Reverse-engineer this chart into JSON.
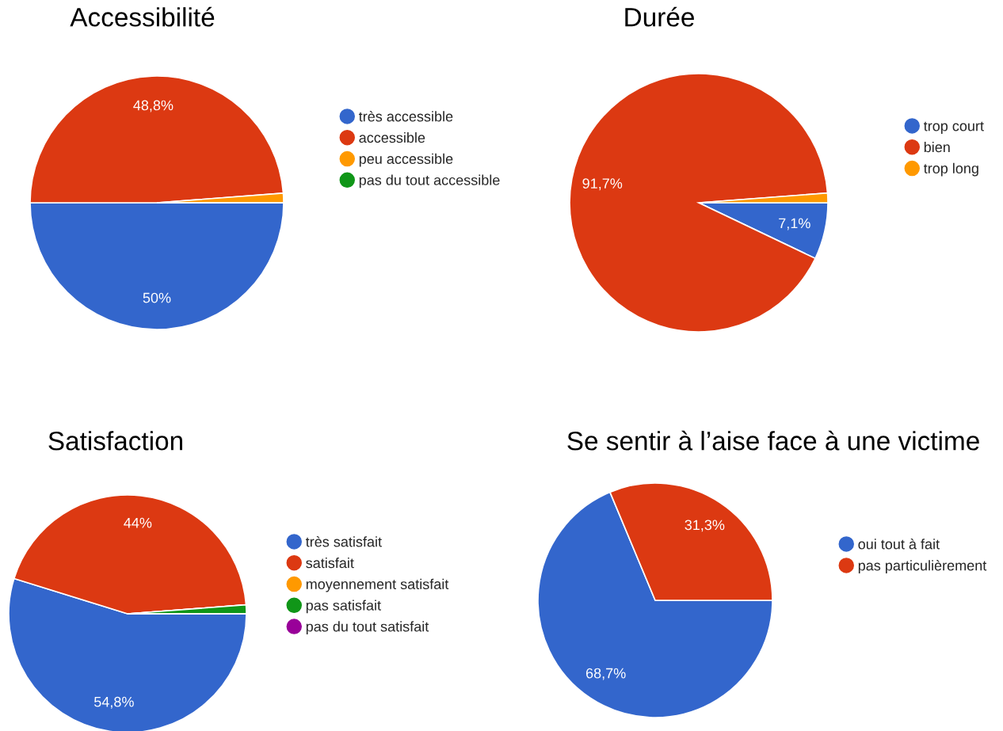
{
  "chart_data": [
    {
      "type": "pie",
      "title": "Accessibilité",
      "categories": [
        "très accessible",
        "accessible",
        "peu accessible",
        "pas du tout accessible"
      ],
      "values": [
        50,
        48.8,
        1.2,
        0
      ],
      "colors": [
        "#3366cc",
        "#dc3912",
        "#ff9900",
        "#109618"
      ],
      "value_labels": [
        "50%",
        "48,8%",
        null,
        null
      ],
      "legend": "right"
    },
    {
      "type": "pie",
      "title": "Durée",
      "categories": [
        "trop court",
        "bien",
        "trop long"
      ],
      "values": [
        7.1,
        91.7,
        1.2
      ],
      "colors": [
        "#3366cc",
        "#dc3912",
        "#ff9900"
      ],
      "value_labels": [
        "7,1%",
        "91,7%",
        null
      ],
      "legend": "right"
    },
    {
      "type": "pie",
      "title": "Satisfaction",
      "categories": [
        "très satisfait",
        "satisfait",
        "moyennement satisfait",
        "pas satisfait",
        "pas du tout satisfait"
      ],
      "values": [
        54.8,
        44,
        0,
        1.2,
        0
      ],
      "colors": [
        "#3366cc",
        "#dc3912",
        "#ff9900",
        "#109618",
        "#990099"
      ],
      "value_labels": [
        "54,8%",
        "44%",
        null,
        null,
        null
      ],
      "legend": "right"
    },
    {
      "type": "pie",
      "title": "Se sentir à l’aise face à une victime",
      "categories": [
        "oui tout à fait",
        "pas particulièrement"
      ],
      "values": [
        68.7,
        31.3
      ],
      "colors": [
        "#3366cc",
        "#dc3912"
      ],
      "value_labels": [
        "68,7%",
        "31,3%"
      ],
      "legend": "right"
    }
  ]
}
